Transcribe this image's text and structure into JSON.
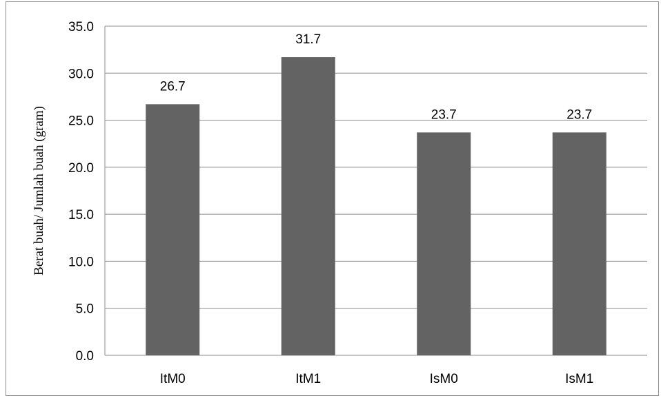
{
  "chart_data": {
    "type": "bar",
    "title": "",
    "xlabel": "",
    "ylabel": "Berat buah/ Jumlah buah (gram)",
    "categories": [
      "ItM0",
      "ItM1",
      "IsM0",
      "IsM1"
    ],
    "values": [
      26.7,
      31.7,
      23.7,
      23.7
    ],
    "data_labels": [
      "26.7",
      "31.7",
      "23.7",
      "23.7"
    ],
    "ylim": [
      0,
      35
    ],
    "yticks": [
      "0.0",
      "5.0",
      "10.0",
      "15.0",
      "20.0",
      "25.0",
      "30.0",
      "35.0"
    ],
    "grid": true,
    "legend": "none",
    "bar_color": "#636363",
    "grid_color": "#8c8c8c"
  }
}
